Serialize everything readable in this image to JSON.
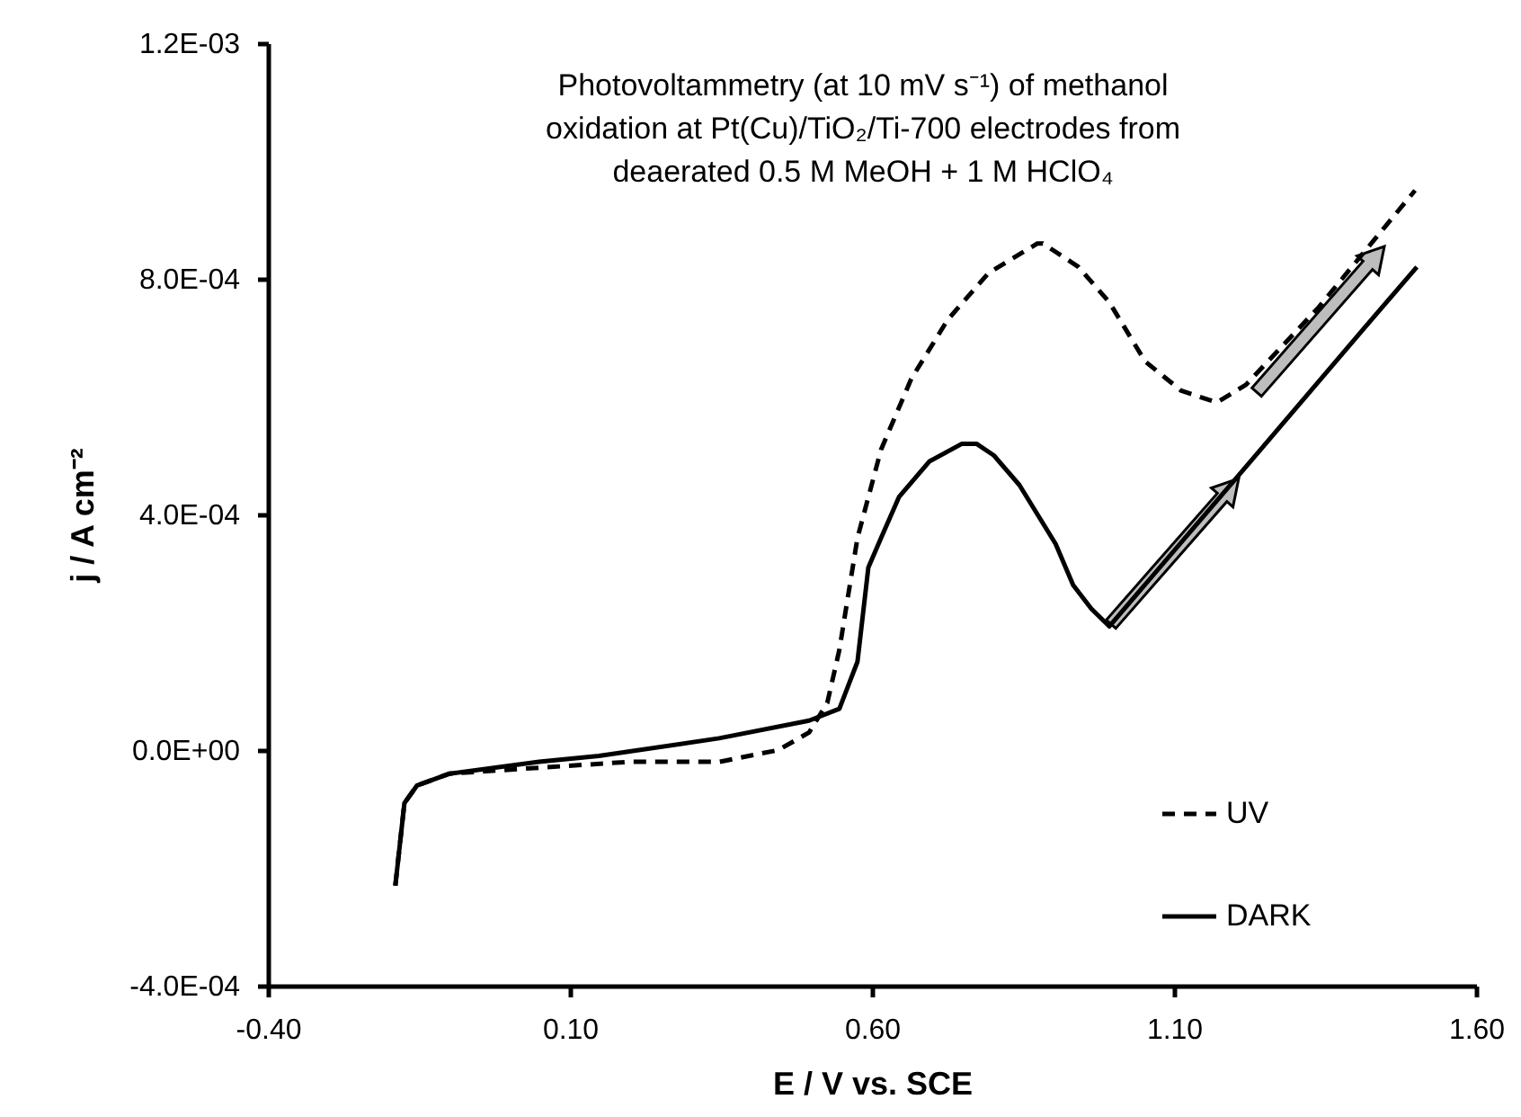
{
  "chart_data": {
    "type": "line",
    "title": "Photovoltammetry (at 10 mV s⁻¹) of methanol oxidation at Pt(Cu)/TiO₂/Ti-700 electrodes from deaerated 0.5 M MeOH + 1 M HClO₄",
    "xlabel": "E / V vs. SCE",
    "ylabel": "j / A cm⁻²",
    "xlim": [
      -0.4,
      1.6
    ],
    "xticks": [
      {
        "value": -0.4,
        "label": "-0.40"
      },
      {
        "value": 0.1,
        "label": "0.10"
      },
      {
        "value": 0.6,
        "label": "0.60"
      },
      {
        "value": 1.1,
        "label": "1.10"
      },
      {
        "value": 1.6,
        "label": "1.60"
      }
    ],
    "ylim": [
      -0.0004,
      0.0012
    ],
    "yticks": [
      {
        "value": -0.0004,
        "label": "-4.0E-04"
      },
      {
        "value": 0,
        "label": "0.0E+00"
      },
      {
        "value": 0.0004,
        "label": "4.0E-04"
      },
      {
        "value": 0.0008,
        "label": "8.0E-04"
      },
      {
        "value": 0.0012,
        "label": "1.2E-03"
      }
    ],
    "grid": false,
    "legend": "bottom right",
    "marker": "none",
    "series": [
      {
        "name": "UV",
        "color": "#000000",
        "line_style": "dashed",
        "x": [
          -0.189,
          -0.174,
          -0.153,
          -0.099,
          0.049,
          0.198,
          0.347,
          0.445,
          0.496,
          0.526,
          0.546,
          0.576,
          0.615,
          0.665,
          0.725,
          0.793,
          0.874,
          0.883,
          0.942,
          0.993,
          1.052,
          1.112,
          1.171,
          1.219,
          1.338,
          1.499
        ],
        "values": [
          -0.00023,
          -9e-05,
          -6e-05,
          -4e-05,
          -3e-05,
          -2e-05,
          -2e-05,
          0.0,
          3e-05,
          8e-05,
          0.00017,
          0.00036,
          0.00051,
          0.00063,
          0.00073,
          0.00081,
          0.00086,
          0.00086,
          0.00082,
          0.00076,
          0.00066,
          0.00061,
          0.00059,
          0.00062,
          0.00075,
          0.00095
        ]
      },
      {
        "name": "DARK",
        "color": "#000000",
        "line_style": "solid",
        "x": [
          -0.189,
          -0.174,
          -0.153,
          -0.099,
          0.049,
          0.148,
          0.347,
          0.496,
          0.546,
          0.576,
          0.594,
          0.615,
          0.645,
          0.695,
          0.749,
          0.773,
          0.802,
          0.844,
          0.874,
          0.904,
          0.933,
          0.963,
          0.993,
          1.21,
          1.418,
          1.502
        ],
        "values": [
          -0.00023,
          -9e-05,
          -6e-05,
          -4e-05,
          -2e-05,
          -1e-05,
          2e-05,
          5e-05,
          7e-05,
          0.00015,
          0.00031,
          0.00036,
          0.00043,
          0.00049,
          0.00052,
          0.00052,
          0.0005,
          0.00045,
          0.0004,
          0.00035,
          0.00028,
          0.00024,
          0.00021,
          0.00047,
          0.00072,
          0.00082
        ]
      }
    ]
  }
}
